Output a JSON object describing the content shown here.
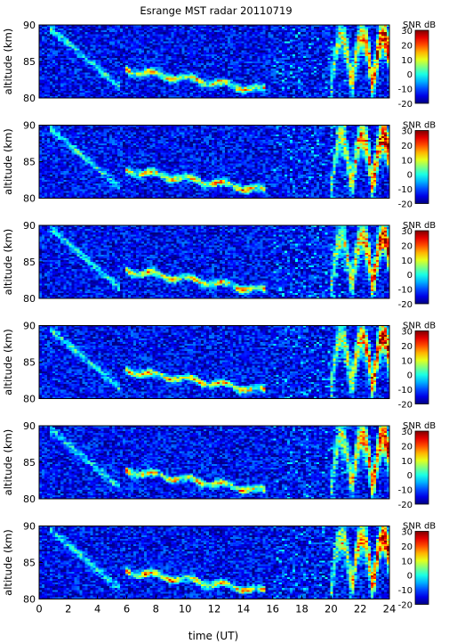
{
  "figure": {
    "title": "Esrange MST radar 20110719",
    "xlabel": "time (UT)"
  },
  "colors": {
    "background": "#ffffff",
    "axis": "#000000",
    "colormap": "jet"
  },
  "chart_data": [
    {
      "type": "heatmap",
      "ylabel": "altitude (km)",
      "xlim": [
        0,
        24
      ],
      "ylim": [
        80,
        90
      ],
      "yticks": [
        80,
        85,
        90
      ],
      "xticks": [],
      "colorbar": {
        "label": "SNR dB",
        "ticks": [
          30,
          20,
          10,
          0,
          -10,
          -20
        ],
        "range": [
          -20,
          30
        ]
      },
      "echo_layers": [
        {
          "t_start": 6.0,
          "t_end": 15.6,
          "alt_start": 83.8,
          "alt_end": 81.0,
          "snr_peak": 15
        },
        {
          "t_start": 0.8,
          "t_end": 5.5,
          "alt_start": 89.5,
          "alt_end": 81.5,
          "snr_peak": 2
        },
        {
          "t_start": 20.0,
          "t_end": 24.0,
          "alt_start": 81.5,
          "alt_end": 88.5,
          "snr_peak": 28
        }
      ]
    },
    {
      "type": "heatmap",
      "ylabel": "altitude (km)",
      "xlim": [
        0,
        24
      ],
      "ylim": [
        80,
        90
      ],
      "yticks": [
        80,
        85,
        90
      ],
      "xticks": [],
      "colorbar": {
        "label": "SNR dB",
        "ticks": [
          30,
          20,
          10,
          0,
          -10,
          -20
        ],
        "range": [
          -20,
          30
        ]
      },
      "echo_layers": [
        {
          "t_start": 6.0,
          "t_end": 15.6,
          "alt_start": 83.8,
          "alt_end": 81.0,
          "snr_peak": 16
        },
        {
          "t_start": 0.8,
          "t_end": 5.5,
          "alt_start": 89.5,
          "alt_end": 81.5,
          "snr_peak": 2
        },
        {
          "t_start": 20.0,
          "t_end": 24.0,
          "alt_start": 81.5,
          "alt_end": 88.5,
          "snr_peak": 28
        }
      ]
    },
    {
      "type": "heatmap",
      "ylabel": "altitude (km)",
      "xlim": [
        0,
        24
      ],
      "ylim": [
        80,
        90
      ],
      "yticks": [
        80,
        85,
        90
      ],
      "xticks": [],
      "colorbar": {
        "label": "SNR dB",
        "ticks": [
          30,
          20,
          10,
          0,
          -10,
          -20
        ],
        "range": [
          -20,
          30
        ]
      },
      "echo_layers": [
        {
          "t_start": 6.0,
          "t_end": 15.6,
          "alt_start": 83.8,
          "alt_end": 81.0,
          "snr_peak": 15
        },
        {
          "t_start": 0.8,
          "t_end": 5.5,
          "alt_start": 89.5,
          "alt_end": 81.5,
          "snr_peak": 2
        },
        {
          "t_start": 20.0,
          "t_end": 24.0,
          "alt_start": 81.5,
          "alt_end": 88.5,
          "snr_peak": 28
        }
      ]
    },
    {
      "type": "heatmap",
      "ylabel": "altitude (km)",
      "xlim": [
        0,
        24
      ],
      "ylim": [
        80,
        90
      ],
      "yticks": [
        80,
        85,
        90
      ],
      "xticks": [],
      "colorbar": {
        "label": "SNR dB",
        "ticks": [
          30,
          20,
          10,
          0,
          -10,
          -20
        ],
        "range": [
          -20,
          30
        ]
      },
      "echo_layers": [
        {
          "t_start": 6.0,
          "t_end": 15.6,
          "alt_start": 83.8,
          "alt_end": 81.0,
          "snr_peak": 16
        },
        {
          "t_start": 0.8,
          "t_end": 5.5,
          "alt_start": 89.5,
          "alt_end": 81.5,
          "snr_peak": 2
        },
        {
          "t_start": 20.0,
          "t_end": 24.0,
          "alt_start": 81.5,
          "alt_end": 88.5,
          "snr_peak": 28
        }
      ]
    },
    {
      "type": "heatmap",
      "ylabel": "altitude (km)",
      "xlim": [
        0,
        24
      ],
      "ylim": [
        80,
        90
      ],
      "yticks": [
        80,
        85,
        90
      ],
      "xticks": [],
      "colorbar": {
        "label": "SNR dB",
        "ticks": [
          30,
          20,
          10,
          0,
          -10,
          -20
        ],
        "range": [
          -20,
          30
        ]
      },
      "echo_layers": [
        {
          "t_start": 6.0,
          "t_end": 15.6,
          "alt_start": 83.8,
          "alt_end": 81.0,
          "snr_peak": 15
        },
        {
          "t_start": 0.8,
          "t_end": 5.5,
          "alt_start": 89.5,
          "alt_end": 81.5,
          "snr_peak": 2
        },
        {
          "t_start": 20.0,
          "t_end": 24.0,
          "alt_start": 81.5,
          "alt_end": 88.5,
          "snr_peak": 28
        }
      ]
    },
    {
      "type": "heatmap",
      "ylabel": "altitude (km)",
      "xlim": [
        0,
        24
      ],
      "ylim": [
        80,
        90
      ],
      "yticks": [
        80,
        85,
        90
      ],
      "xticks": [
        0,
        2,
        4,
        6,
        8,
        10,
        12,
        14,
        16,
        18,
        20,
        22,
        24
      ],
      "colorbar": {
        "label": "SNR dB",
        "ticks": [
          30,
          20,
          10,
          0,
          -10,
          -20
        ],
        "range": [
          -20,
          30
        ]
      },
      "echo_layers": [
        {
          "t_start": 6.0,
          "t_end": 15.6,
          "alt_start": 83.8,
          "alt_end": 81.0,
          "snr_peak": 16
        },
        {
          "t_start": 0.8,
          "t_end": 5.5,
          "alt_start": 89.5,
          "alt_end": 81.5,
          "snr_peak": 2
        },
        {
          "t_start": 20.0,
          "t_end": 24.0,
          "alt_start": 81.5,
          "alt_end": 88.5,
          "snr_peak": 28
        }
      ]
    }
  ]
}
